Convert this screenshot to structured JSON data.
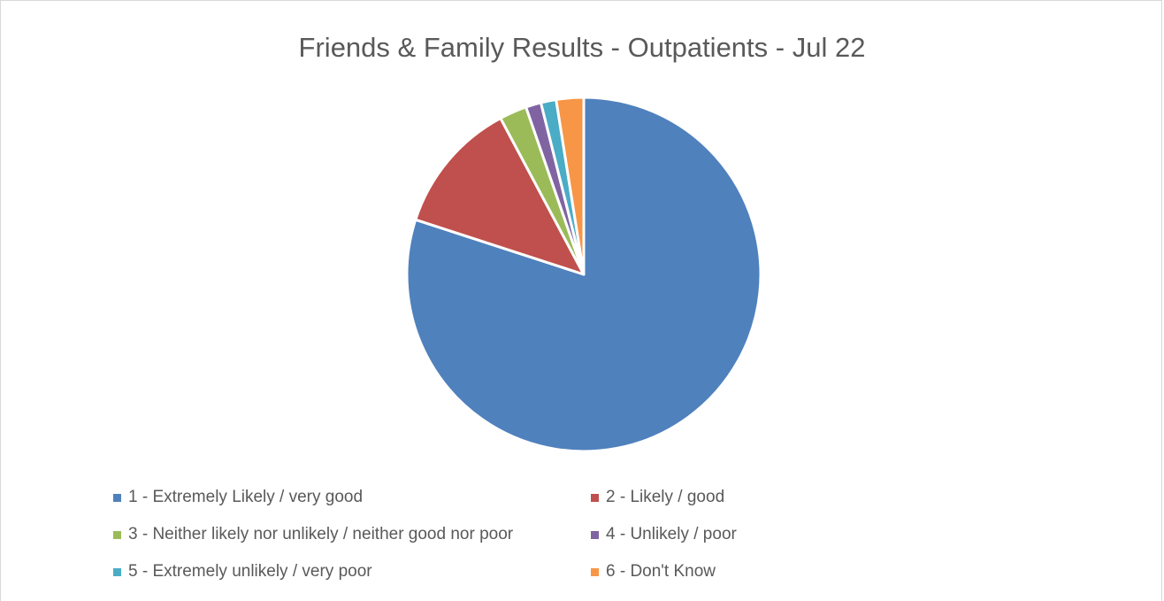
{
  "chart_data": {
    "type": "pie",
    "title": "Friends & Family Results - Outpatients - Jul 22",
    "series": [
      {
        "name": "1 - Extremely Likely / very good",
        "value": 80.0,
        "color": "#4F81BD"
      },
      {
        "name": "2 - Likely / good",
        "value": 12.2,
        "color": "#C0504D"
      },
      {
        "name": "3 - Neither likely nor unlikely / neither good nor poor",
        "value": 2.5,
        "color": "#9BBB59"
      },
      {
        "name": "4 - Unlikely / poor",
        "value": 1.4,
        "color": "#8064A2"
      },
      {
        "name": "5 - Extremely unlikely / very poor",
        "value": 1.4,
        "color": "#4BACC6"
      },
      {
        "name": "6 - Don't Know",
        "value": 2.5,
        "color": "#F79646"
      }
    ],
    "legend_position": "bottom",
    "start_angle": "12 o'clock, clockwise"
  }
}
